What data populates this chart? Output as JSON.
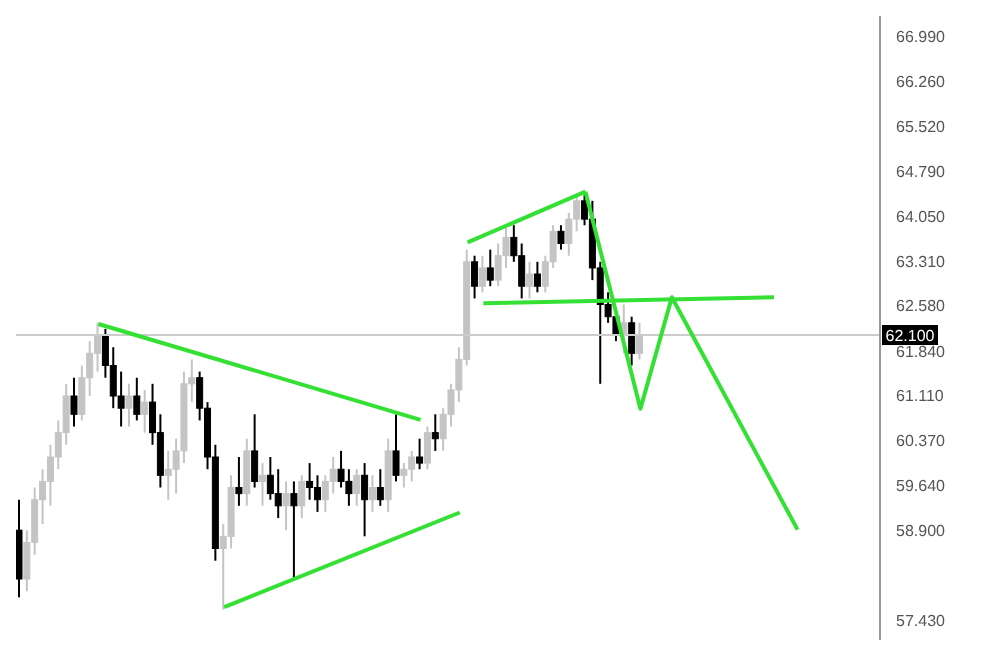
{
  "chart_data": {
    "type": "candlestick",
    "categories": [
      null,
      null,
      null,
      null,
      null,
      null,
      null,
      null,
      null,
      null,
      null,
      null,
      null,
      null,
      null,
      null,
      null,
      null,
      null,
      null,
      null,
      null,
      null,
      null,
      null,
      null,
      null,
      null,
      null,
      null,
      null,
      null,
      null,
      null,
      null,
      null,
      null,
      null,
      null,
      null,
      null,
      null,
      null,
      null,
      null,
      null,
      null,
      null,
      null,
      null,
      null,
      null,
      null,
      null,
      null,
      null,
      null,
      null,
      null,
      null,
      null,
      null,
      null,
      null,
      null,
      null,
      null,
      null,
      null,
      null,
      null,
      null,
      null,
      null,
      null,
      null,
      null,
      null,
      null,
      null,
      null,
      null,
      null,
      null,
      null,
      null,
      null,
      null,
      null,
      null,
      null,
      null,
      null,
      null,
      null,
      null,
      null,
      null,
      null,
      null,
      null,
      null,
      null,
      null,
      null,
      null,
      null,
      null,
      null,
      null
    ],
    "ohlc": [
      [
        58.9,
        59.4,
        57.8,
        58.1
      ],
      [
        58.1,
        58.9,
        57.9,
        58.7
      ],
      [
        58.7,
        59.6,
        58.5,
        59.4
      ],
      [
        59.4,
        59.9,
        59.0,
        59.7
      ],
      [
        59.7,
        60.3,
        59.3,
        60.1
      ],
      [
        60.1,
        60.7,
        59.9,
        60.5
      ],
      [
        60.5,
        61.3,
        60.3,
        61.1
      ],
      [
        61.1,
        61.4,
        60.6,
        60.8
      ],
      [
        60.8,
        61.6,
        60.7,
        61.4
      ],
      [
        61.4,
        62.0,
        61.1,
        61.8
      ],
      [
        61.8,
        62.3,
        61.5,
        62.1
      ],
      [
        62.1,
        62.2,
        61.4,
        61.6
      ],
      [
        61.6,
        61.9,
        60.9,
        61.1
      ],
      [
        61.1,
        61.5,
        60.6,
        60.9
      ],
      [
        60.9,
        61.3,
        60.6,
        61.1
      ],
      [
        61.1,
        61.4,
        60.7,
        60.8
      ],
      [
        60.8,
        61.2,
        60.5,
        61.0
      ],
      [
        61.0,
        61.3,
        60.3,
        60.5
      ],
      [
        60.5,
        60.8,
        59.6,
        59.8
      ],
      [
        59.8,
        60.2,
        59.4,
        59.9
      ],
      [
        59.9,
        60.4,
        59.5,
        60.2
      ],
      [
        60.2,
        61.5,
        60.0,
        61.3
      ],
      [
        61.3,
        61.7,
        61.0,
        61.4
      ],
      [
        61.4,
        61.5,
        60.7,
        60.9
      ],
      [
        60.9,
        61.0,
        59.9,
        60.1
      ],
      [
        60.1,
        60.3,
        58.4,
        58.6
      ],
      [
        58.6,
        59.0,
        57.6,
        58.8
      ],
      [
        58.8,
        59.8,
        58.6,
        59.6
      ],
      [
        59.6,
        60.1,
        59.3,
        59.5
      ],
      [
        59.5,
        60.4,
        59.3,
        60.2
      ],
      [
        60.2,
        60.8,
        59.6,
        59.7
      ],
      [
        59.7,
        60.0,
        59.3,
        59.8
      ],
      [
        59.8,
        60.1,
        59.4,
        59.5
      ],
      [
        59.5,
        59.9,
        59.1,
        59.3
      ],
      [
        59.3,
        59.7,
        58.9,
        59.5
      ],
      [
        59.5,
        59.7,
        58.1,
        59.3
      ],
      [
        59.3,
        59.8,
        59.1,
        59.7
      ],
      [
        59.7,
        60.0,
        59.4,
        59.6
      ],
      [
        59.6,
        59.8,
        59.2,
        59.4
      ],
      [
        59.4,
        59.8,
        59.2,
        59.7
      ],
      [
        59.7,
        60.1,
        59.5,
        59.9
      ],
      [
        59.9,
        60.2,
        59.6,
        59.7
      ],
      [
        59.7,
        59.9,
        59.3,
        59.5
      ],
      [
        59.5,
        59.9,
        59.3,
        59.8
      ],
      [
        59.8,
        60.0,
        58.8,
        59.4
      ],
      [
        59.4,
        59.8,
        59.2,
        59.6
      ],
      [
        59.6,
        59.9,
        59.3,
        59.4
      ],
      [
        59.4,
        60.4,
        59.2,
        60.2
      ],
      [
        60.2,
        60.8,
        59.7,
        59.8
      ],
      [
        59.8,
        60.0,
        59.6,
        59.9
      ],
      [
        59.9,
        60.2,
        59.7,
        60.1
      ],
      [
        60.1,
        60.4,
        59.9,
        60.0
      ],
      [
        60.0,
        60.6,
        59.9,
        60.5
      ],
      [
        60.5,
        60.8,
        60.2,
        60.4
      ],
      [
        60.4,
        60.9,
        60.2,
        60.8
      ],
      [
        60.8,
        61.3,
        60.6,
        61.2
      ],
      [
        61.2,
        61.9,
        61.0,
        61.7
      ],
      [
        61.7,
        63.5,
        61.6,
        63.3
      ],
      [
        63.3,
        63.4,
        62.7,
        62.9
      ],
      [
        62.9,
        63.4,
        62.8,
        63.2
      ],
      [
        63.2,
        63.5,
        62.9,
        63.0
      ],
      [
        63.0,
        63.6,
        62.9,
        63.4
      ],
      [
        63.4,
        63.9,
        63.2,
        63.7
      ],
      [
        63.7,
        63.9,
        63.3,
        63.4
      ],
      [
        63.4,
        63.6,
        62.7,
        62.9
      ],
      [
        62.9,
        63.3,
        62.7,
        63.1
      ],
      [
        63.1,
        63.3,
        62.8,
        62.9
      ],
      [
        62.9,
        63.4,
        62.8,
        63.3
      ],
      [
        63.3,
        63.9,
        63.2,
        63.8
      ],
      [
        63.8,
        63.9,
        63.5,
        63.6
      ],
      [
        63.6,
        64.1,
        63.4,
        64.0
      ],
      [
        64.0,
        64.4,
        63.8,
        64.3
      ],
      [
        64.3,
        64.4,
        63.9,
        64.0
      ],
      [
        64.0,
        64.3,
        63.0,
        63.2
      ],
      [
        63.2,
        63.3,
        61.3,
        62.6
      ],
      [
        62.6,
        62.8,
        62.3,
        62.4
      ],
      [
        62.4,
        62.5,
        62.0,
        62.1
      ],
      [
        62.1,
        62.6,
        61.8,
        62.3
      ],
      [
        62.3,
        62.4,
        61.6,
        61.8
      ],
      [
        61.8,
        62.3,
        61.7,
        62.1
      ],
      null,
      null,
      null,
      null,
      null,
      null,
      null,
      null,
      null,
      null,
      null,
      null,
      null,
      null,
      null,
      null,
      null,
      null,
      null,
      null,
      null,
      null,
      null,
      null,
      null,
      null,
      null,
      null,
      null,
      null
    ],
    "colors": [
      "#000000",
      "#c4c4c4",
      "#c4c4c4",
      "#c4c4c4",
      "#c4c4c4",
      "#c4c4c4",
      "#c4c4c4",
      "#000000",
      "#c4c4c4",
      "#c4c4c4",
      "#c4c4c4",
      "#000000",
      "#000000",
      "#000000",
      "#c4c4c4",
      "#000000",
      "#c4c4c4",
      "#000000",
      "#000000",
      "#c4c4c4",
      "#c4c4c4",
      "#c4c4c4",
      "#c4c4c4",
      "#000000",
      "#000000",
      "#000000",
      "#c4c4c4",
      "#c4c4c4",
      "#000000",
      "#c4c4c4",
      "#000000",
      "#c4c4c4",
      "#000000",
      "#000000",
      "#c4c4c4",
      "#000000",
      "#c4c4c4",
      "#000000",
      "#000000",
      "#c4c4c4",
      "#c4c4c4",
      "#000000",
      "#000000",
      "#c4c4c4",
      "#000000",
      "#c4c4c4",
      "#000000",
      "#c4c4c4",
      "#000000",
      "#c4c4c4",
      "#c4c4c4",
      "#000000",
      "#c4c4c4",
      "#000000",
      "#c4c4c4",
      "#c4c4c4",
      "#c4c4c4",
      "#c4c4c4",
      "#000000",
      "#c4c4c4",
      "#000000",
      "#c4c4c4",
      "#c4c4c4",
      "#000000",
      "#000000",
      "#c4c4c4",
      "#000000",
      "#c4c4c4",
      "#c4c4c4",
      "#000000",
      "#c4c4c4",
      "#c4c4c4",
      "#000000",
      "#000000",
      "#000000",
      "#000000",
      "#000000",
      "#c4c4c4",
      "#000000",
      "#c4c4c4",
      null,
      null,
      null,
      null,
      null,
      null,
      null,
      null,
      null,
      null,
      null,
      null,
      null,
      null,
      null,
      null,
      null,
      null,
      null,
      null,
      null,
      null,
      null,
      null,
      null,
      null,
      null,
      null,
      null,
      null
    ],
    "series": [
      {
        "type": "line",
        "color": "#33e033",
        "values": [
          null,
          null,
          null,
          null,
          null,
          null,
          null,
          null,
          null,
          null,
          62.28,
          null,
          null,
          null,
          null,
          null,
          null,
          null,
          null,
          null,
          null,
          null,
          null,
          null,
          null,
          null,
          null,
          null,
          null,
          null,
          null,
          null,
          null,
          null,
          null,
          null,
          null,
          null,
          null,
          null,
          null,
          null,
          null,
          null,
          null,
          null,
          null,
          null,
          null,
          null,
          null,
          60.71,
          null,
          null,
          null,
          null,
          null,
          null,
          null,
          null,
          null,
          null,
          null,
          null,
          null,
          null,
          null,
          null,
          null,
          null,
          null,
          null,
          null,
          null,
          null,
          null,
          null,
          null,
          null,
          null,
          null,
          null,
          null,
          null,
          null,
          null,
          null,
          null,
          null,
          null,
          null,
          null,
          null,
          null,
          null,
          null,
          null,
          null,
          null,
          null,
          null,
          null,
          null,
          null,
          null,
          null,
          null,
          null,
          null,
          null
        ]
      },
      {
        "type": "line",
        "color": "#33e033",
        "values": [
          null,
          null,
          null,
          null,
          null,
          null,
          null,
          null,
          null,
          null,
          null,
          null,
          null,
          null,
          null,
          null,
          null,
          null,
          null,
          null,
          null,
          null,
          null,
          null,
          null,
          null,
          57.64,
          null,
          null,
          null,
          null,
          null,
          null,
          null,
          null,
          null,
          null,
          null,
          null,
          null,
          null,
          null,
          null,
          null,
          null,
          null,
          null,
          null,
          null,
          null,
          null,
          null,
          null,
          null,
          null,
          null,
          59.19,
          null,
          null,
          null,
          null,
          null,
          null,
          null,
          null,
          null,
          null,
          null,
          null,
          null,
          null,
          null,
          null,
          null,
          null,
          null,
          null,
          null,
          null,
          null,
          null,
          null,
          null,
          null,
          null,
          null,
          null,
          null,
          null,
          null,
          null,
          null,
          null,
          null,
          null,
          null,
          null,
          null,
          null,
          null,
          null,
          null,
          null,
          null,
          null,
          null,
          null,
          null,
          null,
          null
        ]
      },
      {
        "type": "line",
        "color": "#33e033",
        "values": [
          null,
          null,
          null,
          null,
          null,
          null,
          null,
          null,
          null,
          null,
          null,
          null,
          null,
          null,
          null,
          null,
          null,
          null,
          null,
          null,
          null,
          null,
          null,
          null,
          null,
          null,
          null,
          null,
          null,
          null,
          null,
          null,
          null,
          null,
          null,
          null,
          null,
          null,
          null,
          null,
          null,
          null,
          null,
          null,
          null,
          null,
          null,
          null,
          null,
          null,
          null,
          null,
          null,
          null,
          null,
          null,
          null,
          63.62,
          null,
          null,
          null,
          null,
          null,
          null,
          null,
          null,
          null,
          null,
          null,
          null,
          null,
          null,
          64.45,
          null,
          null,
          null,
          null,
          null,
          null,
          null,
          null,
          null,
          null,
          null,
          null,
          null,
          null,
          null,
          null,
          null,
          null,
          null,
          null,
          null,
          null,
          null,
          null,
          null,
          null,
          null,
          null,
          null,
          null,
          null,
          null,
          null,
          null,
          null,
          null,
          null
        ]
      },
      {
        "type": "line",
        "color": "#33e033",
        "values": [
          null,
          null,
          null,
          null,
          null,
          null,
          null,
          null,
          null,
          null,
          null,
          null,
          null,
          null,
          null,
          null,
          null,
          null,
          null,
          null,
          null,
          null,
          null,
          null,
          null,
          null,
          null,
          null,
          null,
          null,
          null,
          null,
          null,
          null,
          null,
          null,
          null,
          null,
          null,
          null,
          null,
          null,
          null,
          null,
          null,
          null,
          null,
          null,
          null,
          null,
          null,
          null,
          null,
          null,
          null,
          null,
          null,
          null,
          null,
          62.62,
          null,
          null,
          null,
          null,
          null,
          null,
          null,
          null,
          null,
          null,
          null,
          null,
          null,
          null,
          null,
          null,
          null,
          null,
          null,
          null,
          null,
          null,
          null,
          null,
          null,
          null,
          null,
          null,
          null,
          null,
          null,
          null,
          null,
          null,
          null,
          null,
          62.72,
          null,
          null,
          null,
          null,
          null,
          null,
          null,
          null,
          null,
          null,
          null,
          null,
          null
        ]
      },
      {
        "type": "line",
        "color": "#33e033",
        "values": [
          null,
          null,
          null,
          null,
          null,
          null,
          null,
          null,
          null,
          null,
          null,
          null,
          null,
          null,
          null,
          null,
          null,
          null,
          null,
          null,
          null,
          null,
          null,
          null,
          null,
          null,
          null,
          null,
          null,
          null,
          null,
          null,
          null,
          null,
          null,
          null,
          null,
          null,
          null,
          null,
          null,
          null,
          null,
          null,
          null,
          null,
          null,
          null,
          null,
          null,
          null,
          null,
          null,
          null,
          null,
          null,
          null,
          null,
          null,
          null,
          null,
          null,
          null,
          null,
          null,
          null,
          null,
          null,
          null,
          null,
          null,
          null,
          64.45,
          null,
          null,
          null,
          null,
          null,
          null,
          60.89,
          null,
          null,
          null,
          62.72,
          null,
          null,
          null,
          null,
          null,
          null,
          null,
          null,
          null,
          null,
          null,
          null,
          null,
          null,
          null,
          58.91,
          null,
          null,
          null,
          null,
          null,
          null,
          null,
          null,
          null,
          null
        ]
      }
    ],
    "ylim": [
      57.1,
      67.33
    ],
    "yticks": [
      {
        "value": 66.99,
        "label": "66.990"
      },
      {
        "value": 66.26,
        "label": "66.260"
      },
      {
        "value": 65.52,
        "label": "65.520"
      },
      {
        "value": 64.79,
        "label": "64.790"
      },
      {
        "value": 64.05,
        "label": "64.050"
      },
      {
        "value": 63.31,
        "label": "63.310"
      },
      {
        "value": 62.58,
        "label": "62.580"
      },
      {
        "value": 61.84,
        "label": "61.840"
      },
      {
        "value": 61.11,
        "label": "61.110"
      },
      {
        "value": 60.37,
        "label": "60.370"
      },
      {
        "value": 59.64,
        "label": "59.640"
      },
      {
        "value": 58.9,
        "label": "58.900"
      },
      {
        "value": 57.43,
        "label": "57.430"
      }
    ],
    "ref_lines": [
      {
        "axis": "y",
        "value": 62.1,
        "label": "62.100",
        "color": "#cccccc"
      }
    ],
    "tick_labels": "y"
  }
}
